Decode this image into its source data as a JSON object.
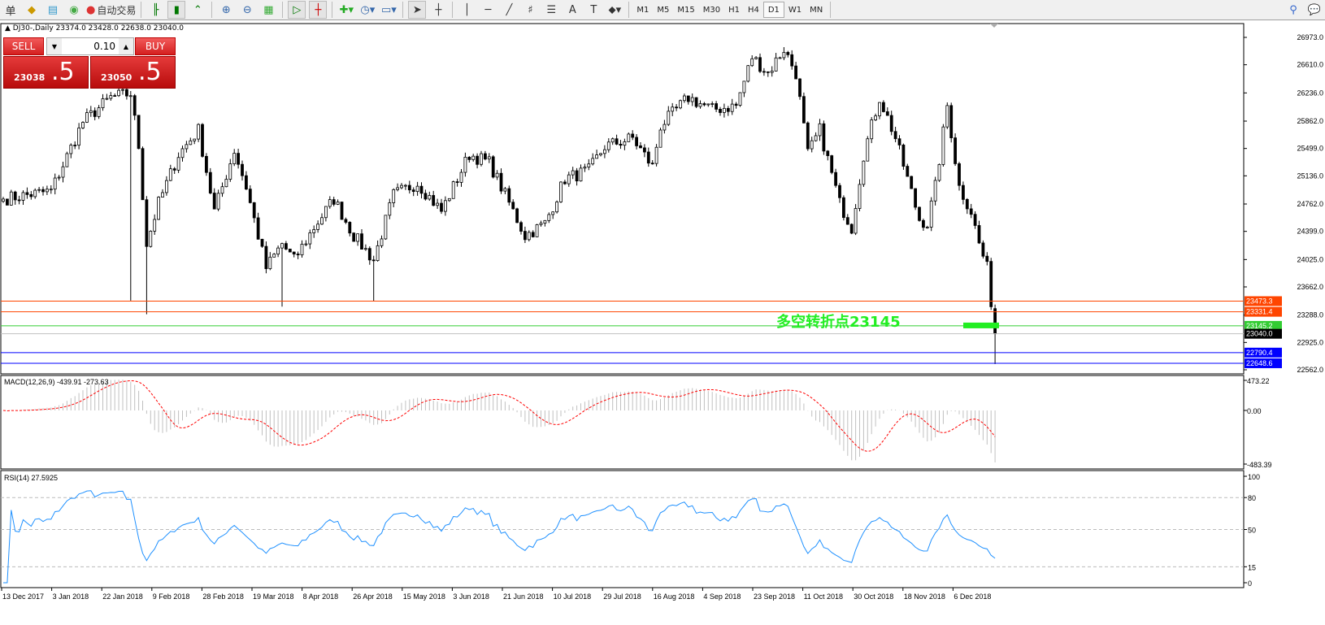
{
  "toolbar": {
    "left_cut_label": "单",
    "auto_trade_label": "自动交易",
    "timeframes": [
      "M1",
      "M5",
      "M15",
      "M30",
      "H1",
      "H4",
      "D1",
      "W1",
      "MN"
    ],
    "active_timeframe": "D1",
    "icons": [
      "open-orders-icon",
      "navigator-icon",
      "market-icon",
      "signals-icon",
      "auto-trade-icon",
      "bar-chart-icon",
      "candlestick-icon",
      "line-chart-icon",
      "zoom-in-icon",
      "zoom-out-icon",
      "tile-windows-icon",
      "autoscroll-icon",
      "chart-shift-icon",
      "indicators-icon",
      "periods-icon",
      "templates-icon",
      "cursor-icon",
      "crosshair-icon",
      "vertical-line-icon",
      "horizontal-line-icon",
      "trendline-icon",
      "fibonacci-icon",
      "fibo-levels-icon",
      "text-icon",
      "text-label-icon",
      "arrows-icon",
      "search-icon",
      "chat-icon"
    ]
  },
  "chart": {
    "symbol_line": "DJ30-,Daily  23374.0 23428.0 22638.0 23040.0",
    "last_bar": {
      "open": 23374.0,
      "high": 23428.0,
      "low": 22638.0,
      "close": 23040.0
    },
    "price_axis": [
      "26973.0",
      "26610.0",
      "26236.0",
      "25862.0",
      "25499.0",
      "25136.0",
      "24762.0",
      "24399.0",
      "24025.0",
      "23662.0",
      "23288.0",
      "22925.0",
      "22562.0"
    ],
    "price_range": [
      22562,
      26973
    ],
    "close_path": [
      [
        0,
        24828
      ],
      [
        12,
        24935
      ],
      [
        20,
        25852
      ],
      [
        27,
        26175
      ],
      [
        32,
        26229
      ],
      [
        34,
        25528
      ],
      [
        36,
        24235
      ],
      [
        39,
        24774
      ],
      [
        44,
        25420
      ],
      [
        49,
        25744
      ],
      [
        53,
        24666
      ],
      [
        58,
        25474
      ],
      [
        61,
        24990
      ],
      [
        66,
        23911
      ],
      [
        70,
        24235
      ],
      [
        73,
        24019
      ],
      [
        78,
        24450
      ],
      [
        83,
        24828
      ],
      [
        88,
        24342
      ],
      [
        93,
        24019
      ],
      [
        98,
        24882
      ],
      [
        104,
        25043
      ],
      [
        110,
        24666
      ],
      [
        117,
        25420
      ],
      [
        122,
        25313
      ],
      [
        126,
        24882
      ],
      [
        131,
        24342
      ],
      [
        136,
        24504
      ],
      [
        141,
        25097
      ],
      [
        147,
        25205
      ],
      [
        151,
        25528
      ],
      [
        158,
        25636
      ],
      [
        163,
        25259
      ],
      [
        165,
        25798
      ],
      [
        172,
        26175
      ],
      [
        178,
        26014
      ],
      [
        184,
        26067
      ],
      [
        188,
        26714
      ],
      [
        192,
        26499
      ],
      [
        196,
        26822
      ],
      [
        199,
        26499
      ],
      [
        202,
        25420
      ],
      [
        205,
        25744
      ],
      [
        210,
        24774
      ],
      [
        213,
        24450
      ],
      [
        216,
        25420
      ],
      [
        220,
        26175
      ],
      [
        224,
        25636
      ],
      [
        227,
        25097
      ],
      [
        230,
        24558
      ],
      [
        232,
        24504
      ],
      [
        234,
        24990
      ],
      [
        237,
        26067
      ],
      [
        240,
        24990
      ],
      [
        243,
        24666
      ],
      [
        245,
        24235
      ],
      [
        247,
        23911
      ],
      [
        249,
        23040
      ]
    ],
    "levels": [
      {
        "label": "23473.3",
        "price": 23473.3,
        "color": "#ff4500"
      },
      {
        "label": "23331.4",
        "price": 23331.4,
        "color": "#ff4500"
      },
      {
        "label": "23145.2",
        "price": 23145.2,
        "color": "#32cd32"
      },
      {
        "label": "23040.0",
        "price": 23040.0,
        "color": "#000000"
      },
      {
        "label": "22790.4",
        "price": 22790.4,
        "color": "#0000ff"
      },
      {
        "label": "22648.6",
        "price": 22648.6,
        "color": "#0000ff"
      }
    ],
    "annotation": "多空转折点23145",
    "dates": [
      "13 Dec 2017",
      "3 Jan 2018",
      "22 Jan 2018",
      "9 Feb 2018",
      "28 Feb 2018",
      "19 Mar 2018",
      "8 Apr 2018",
      "26 Apr 2018",
      "15 May 2018",
      "3 Jun 2018",
      "21 Jun 2018",
      "10 Jul 2018",
      "29 Jul 2018",
      "16 Aug 2018",
      "4 Sep 2018",
      "23 Sep 2018",
      "11 Oct 2018",
      "30 Oct 2018",
      "18 Nov 2018",
      "6 Dec 2018"
    ]
  },
  "trade_panel": {
    "sell_label": "SELL",
    "buy_label": "BUY",
    "lot": "0.10",
    "sell_big": "23038",
    "sell_pip": ".5",
    "buy_big": "23050",
    "buy_pip": ".5"
  },
  "macd": {
    "label": "MACD(12,26,9) -439.91 -273.63",
    "axis": [
      "473.22",
      "0.00",
      "-483.39"
    ],
    "histogram_color": "#c0c0c0",
    "signal_color": "#ff0000"
  },
  "rsi": {
    "label": "RSI(14) 27.5925",
    "axis": [
      "100",
      "80",
      "50",
      "15",
      "0"
    ],
    "color": "#1e90ff"
  }
}
